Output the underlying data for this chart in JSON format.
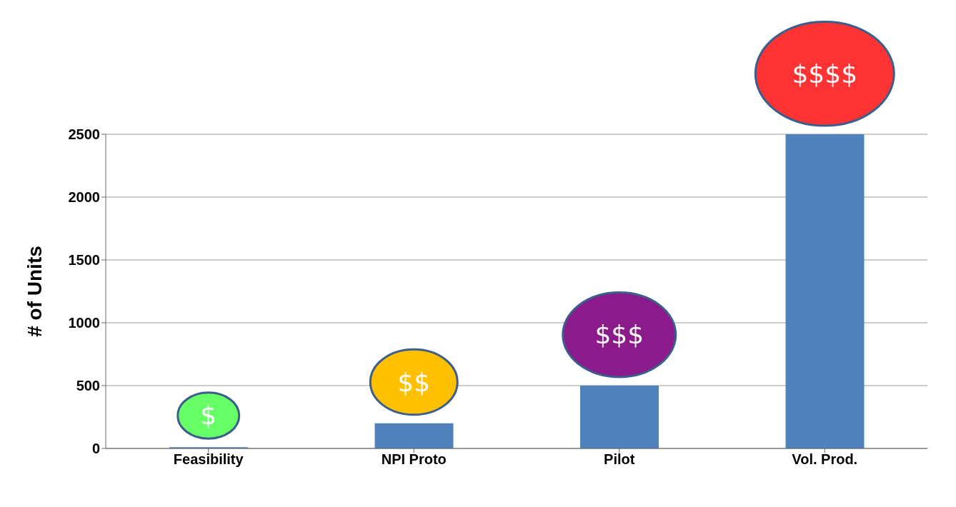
{
  "chart_data": {
    "type": "bar",
    "ylabel": "# of Units",
    "categories": [
      "Feasibility",
      "NPI Proto",
      "Pilot",
      "Vol. Prod."
    ],
    "values": [
      10,
      200,
      500,
      2500
    ],
    "color": "#4f81bd",
    "ylim": [
      0,
      2500
    ],
    "yticks": [
      0,
      500,
      1000,
      1500,
      2000,
      2500
    ],
    "grid": "y",
    "annotations": [
      "$",
      "$$",
      "$$$",
      "$$$$"
    ]
  }
}
